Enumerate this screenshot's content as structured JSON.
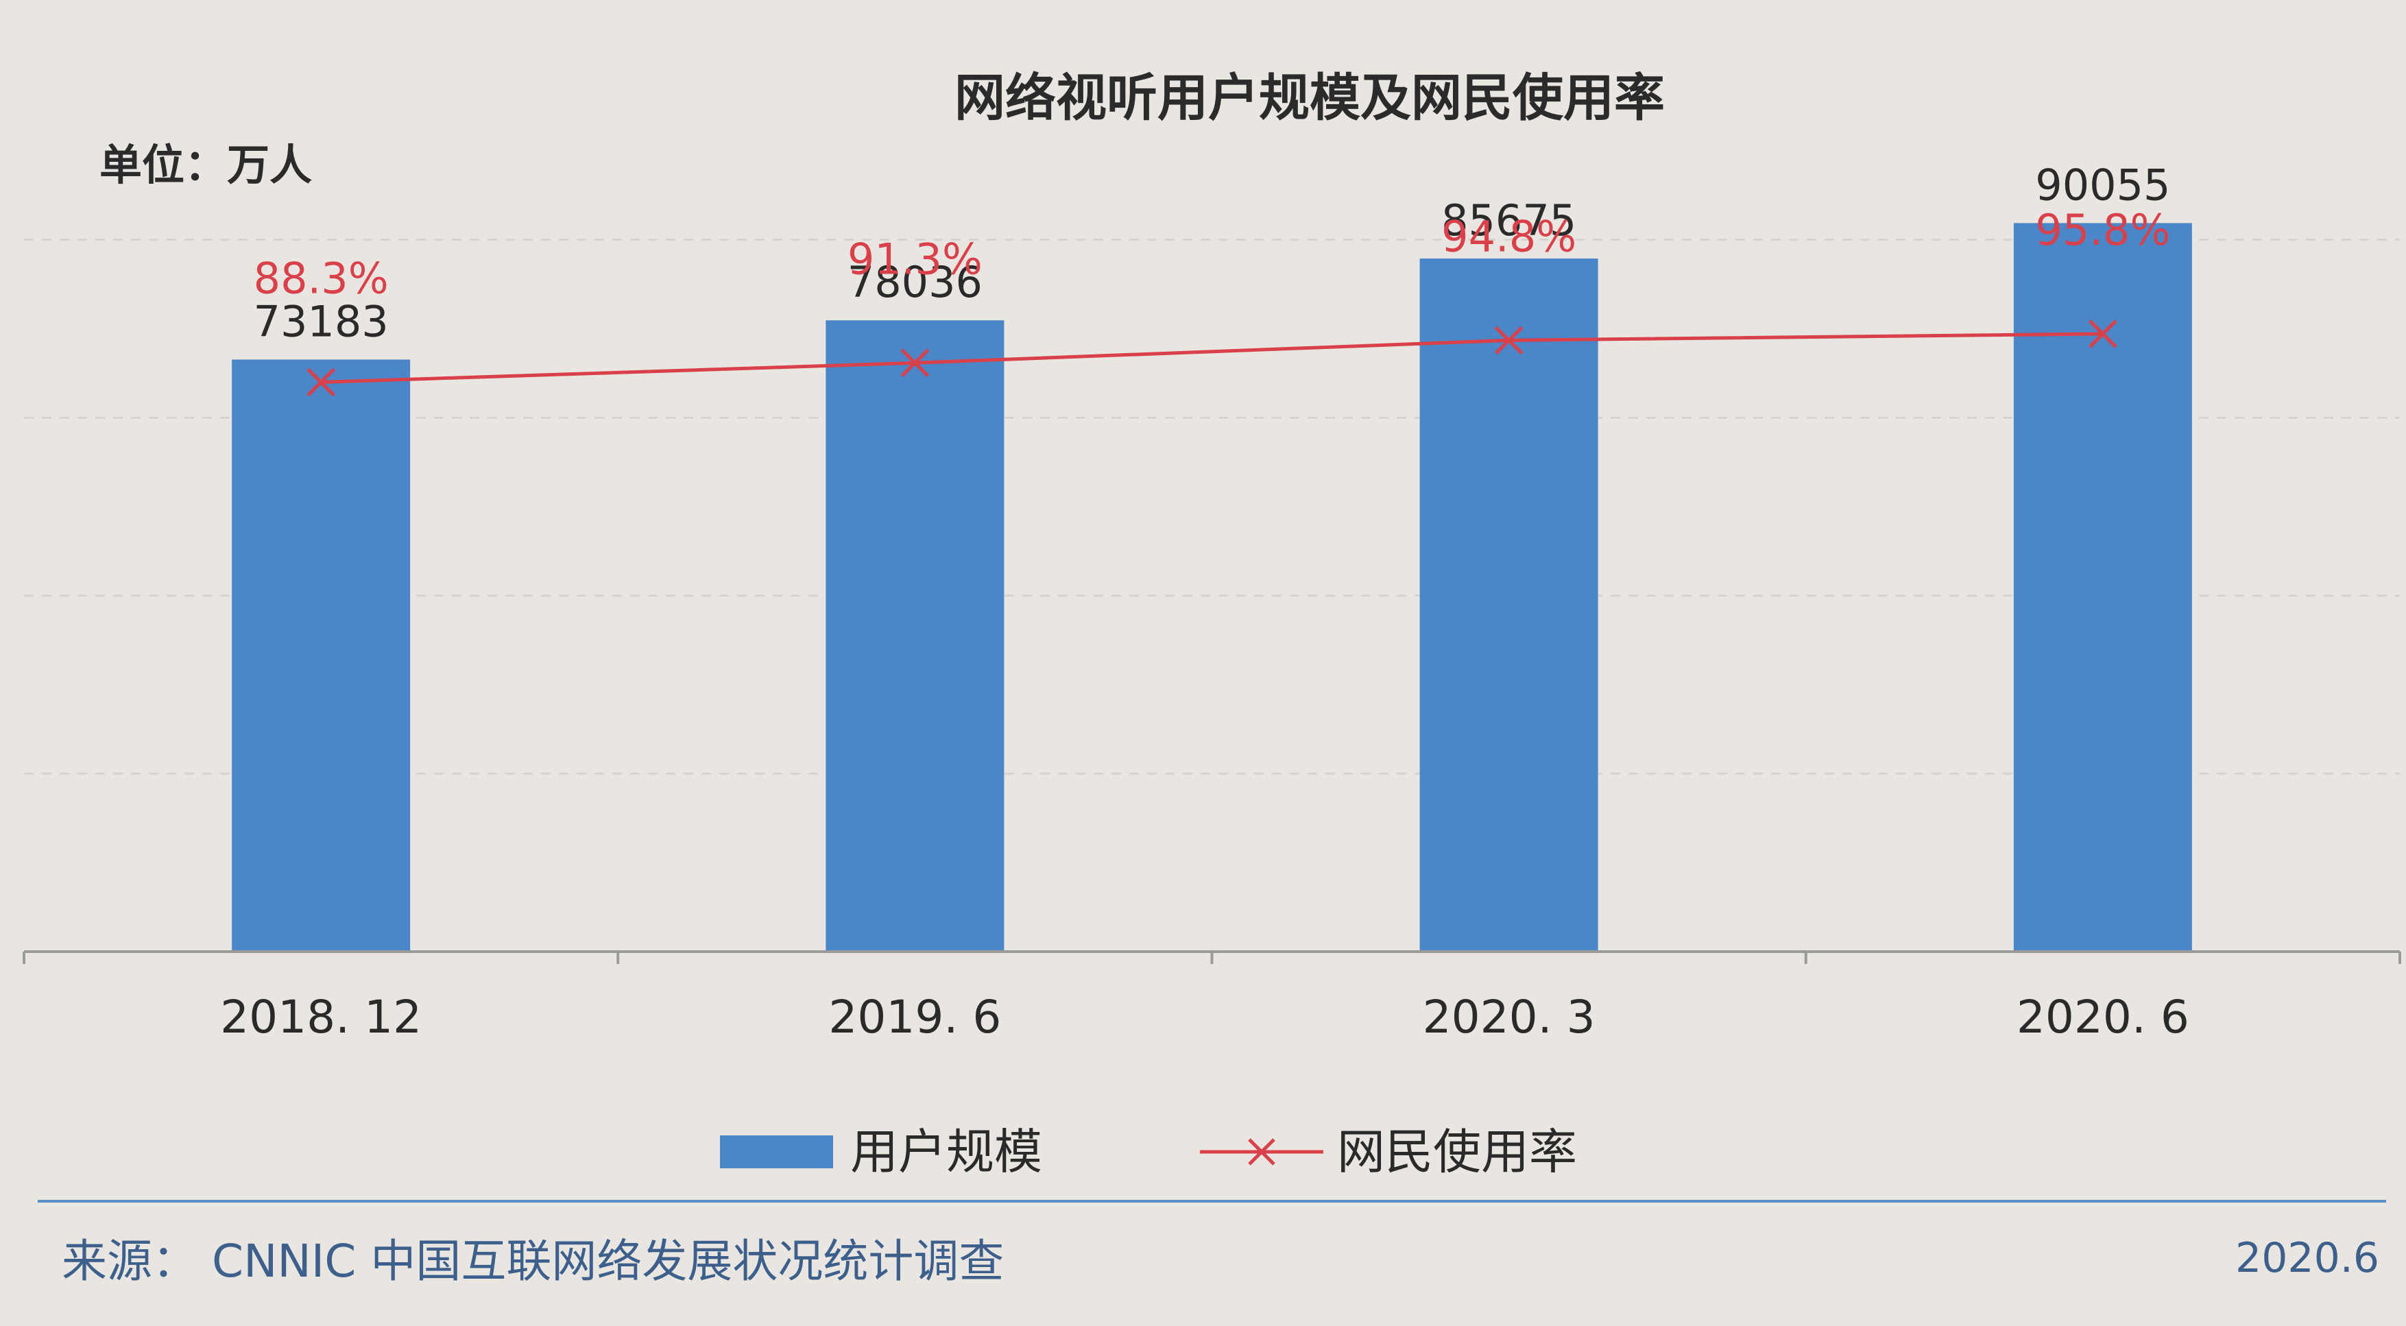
{
  "chart_data": {
    "type": "bar",
    "title": "网络视听用户规模及网民使用率",
    "unit_label": "单位：万人",
    "categories": [
      "2018. 12",
      "2019. 6",
      "2020. 3",
      "2020. 6"
    ],
    "series": [
      {
        "name": "用户规模",
        "type": "bar",
        "values": [
          73183,
          78036,
          85675,
          90055
        ],
        "value_labels": [
          "73183",
          "78036",
          "85675",
          "90055"
        ]
      },
      {
        "name": "网民使用率",
        "type": "line",
        "values": [
          88.3,
          91.3,
          94.8,
          95.8
        ],
        "value_labels": [
          "88.3%",
          "91.3%",
          "94.8%",
          "95.8%"
        ]
      }
    ],
    "bar_ylim": [
      0,
      110000
    ],
    "line_ylim": [
      0,
      138
    ],
    "legend_position": "bottom",
    "grid": true,
    "colors": {
      "bar": "#4a86c8",
      "line": "#d9404a",
      "axis": "#9a9a9a",
      "grid": "#d6d3cf",
      "divider": "#5b8fc7"
    }
  },
  "footer": {
    "source": "来源： CNNIC 中国互联网络发展状况统计调查",
    "date": "2020.6"
  }
}
